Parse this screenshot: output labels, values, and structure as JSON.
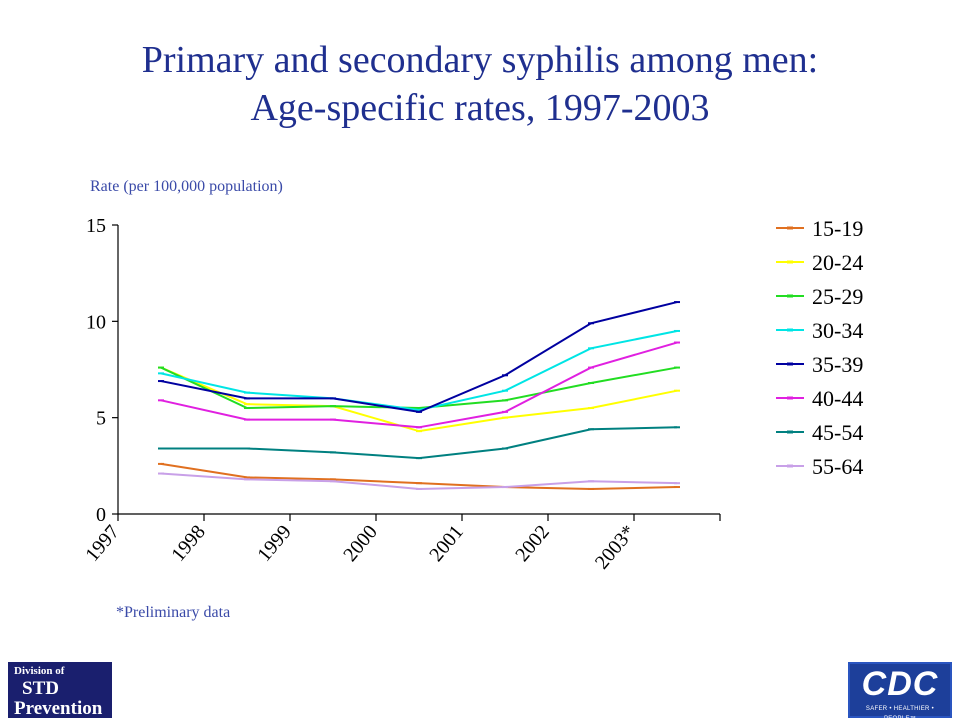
{
  "chart_data": {
    "type": "line",
    "title": "Primary and secondary syphilis among men: Age-specific rates, 1997-2003",
    "title_lines": [
      "Primary and secondary syphilis among men:",
      "Age-specific rates, 1997-2003"
    ],
    "ylabel": "Rate (per 100,000 population)",
    "xlabel": "",
    "categories": [
      "1997",
      "1998",
      "1999",
      "2000",
      "2001",
      "2002",
      "2003*"
    ],
    "ylim": [
      0,
      15
    ],
    "yticks": [
      "0",
      "5",
      "10",
      "15"
    ],
    "grid": false,
    "legend_position": "right",
    "note": "*Preliminary data",
    "series": [
      {
        "name": "15-19",
        "color": "#e07020",
        "values": [
          2.6,
          1.9,
          1.8,
          1.6,
          1.4,
          1.3,
          1.4
        ]
      },
      {
        "name": "20-24",
        "color": "#ffff00",
        "values": [
          7.6,
          5.7,
          5.6,
          4.3,
          5.0,
          5.5,
          6.4
        ]
      },
      {
        "name": "25-29",
        "color": "#22dd22",
        "values": [
          7.6,
          5.5,
          5.6,
          5.5,
          5.9,
          6.8,
          7.6
        ]
      },
      {
        "name": "30-34",
        "color": "#00e5e5",
        "values": [
          7.3,
          6.3,
          6.0,
          5.4,
          6.4,
          8.6,
          9.5
        ]
      },
      {
        "name": "35-39",
        "color": "#0000a0",
        "values": [
          6.9,
          6.0,
          6.0,
          5.3,
          7.2,
          9.9,
          11.0
        ]
      },
      {
        "name": "40-44",
        "color": "#e020e0",
        "values": [
          5.9,
          4.9,
          4.9,
          4.5,
          5.3,
          7.6,
          8.9
        ]
      },
      {
        "name": "45-54",
        "color": "#008080",
        "values": [
          3.4,
          3.4,
          3.2,
          2.9,
          3.4,
          4.4,
          4.5
        ]
      },
      {
        "name": "55-64",
        "color": "#c8a0e8",
        "values": [
          2.1,
          1.8,
          1.7,
          1.3,
          1.4,
          1.7,
          1.6
        ]
      }
    ]
  },
  "logos": {
    "std": {
      "line1": "Division of",
      "line2": "STD",
      "line3": "Prevention"
    },
    "cdc": {
      "main": "CDC",
      "tagline": "SAFER • HEALTHIER • PEOPLE™"
    }
  }
}
